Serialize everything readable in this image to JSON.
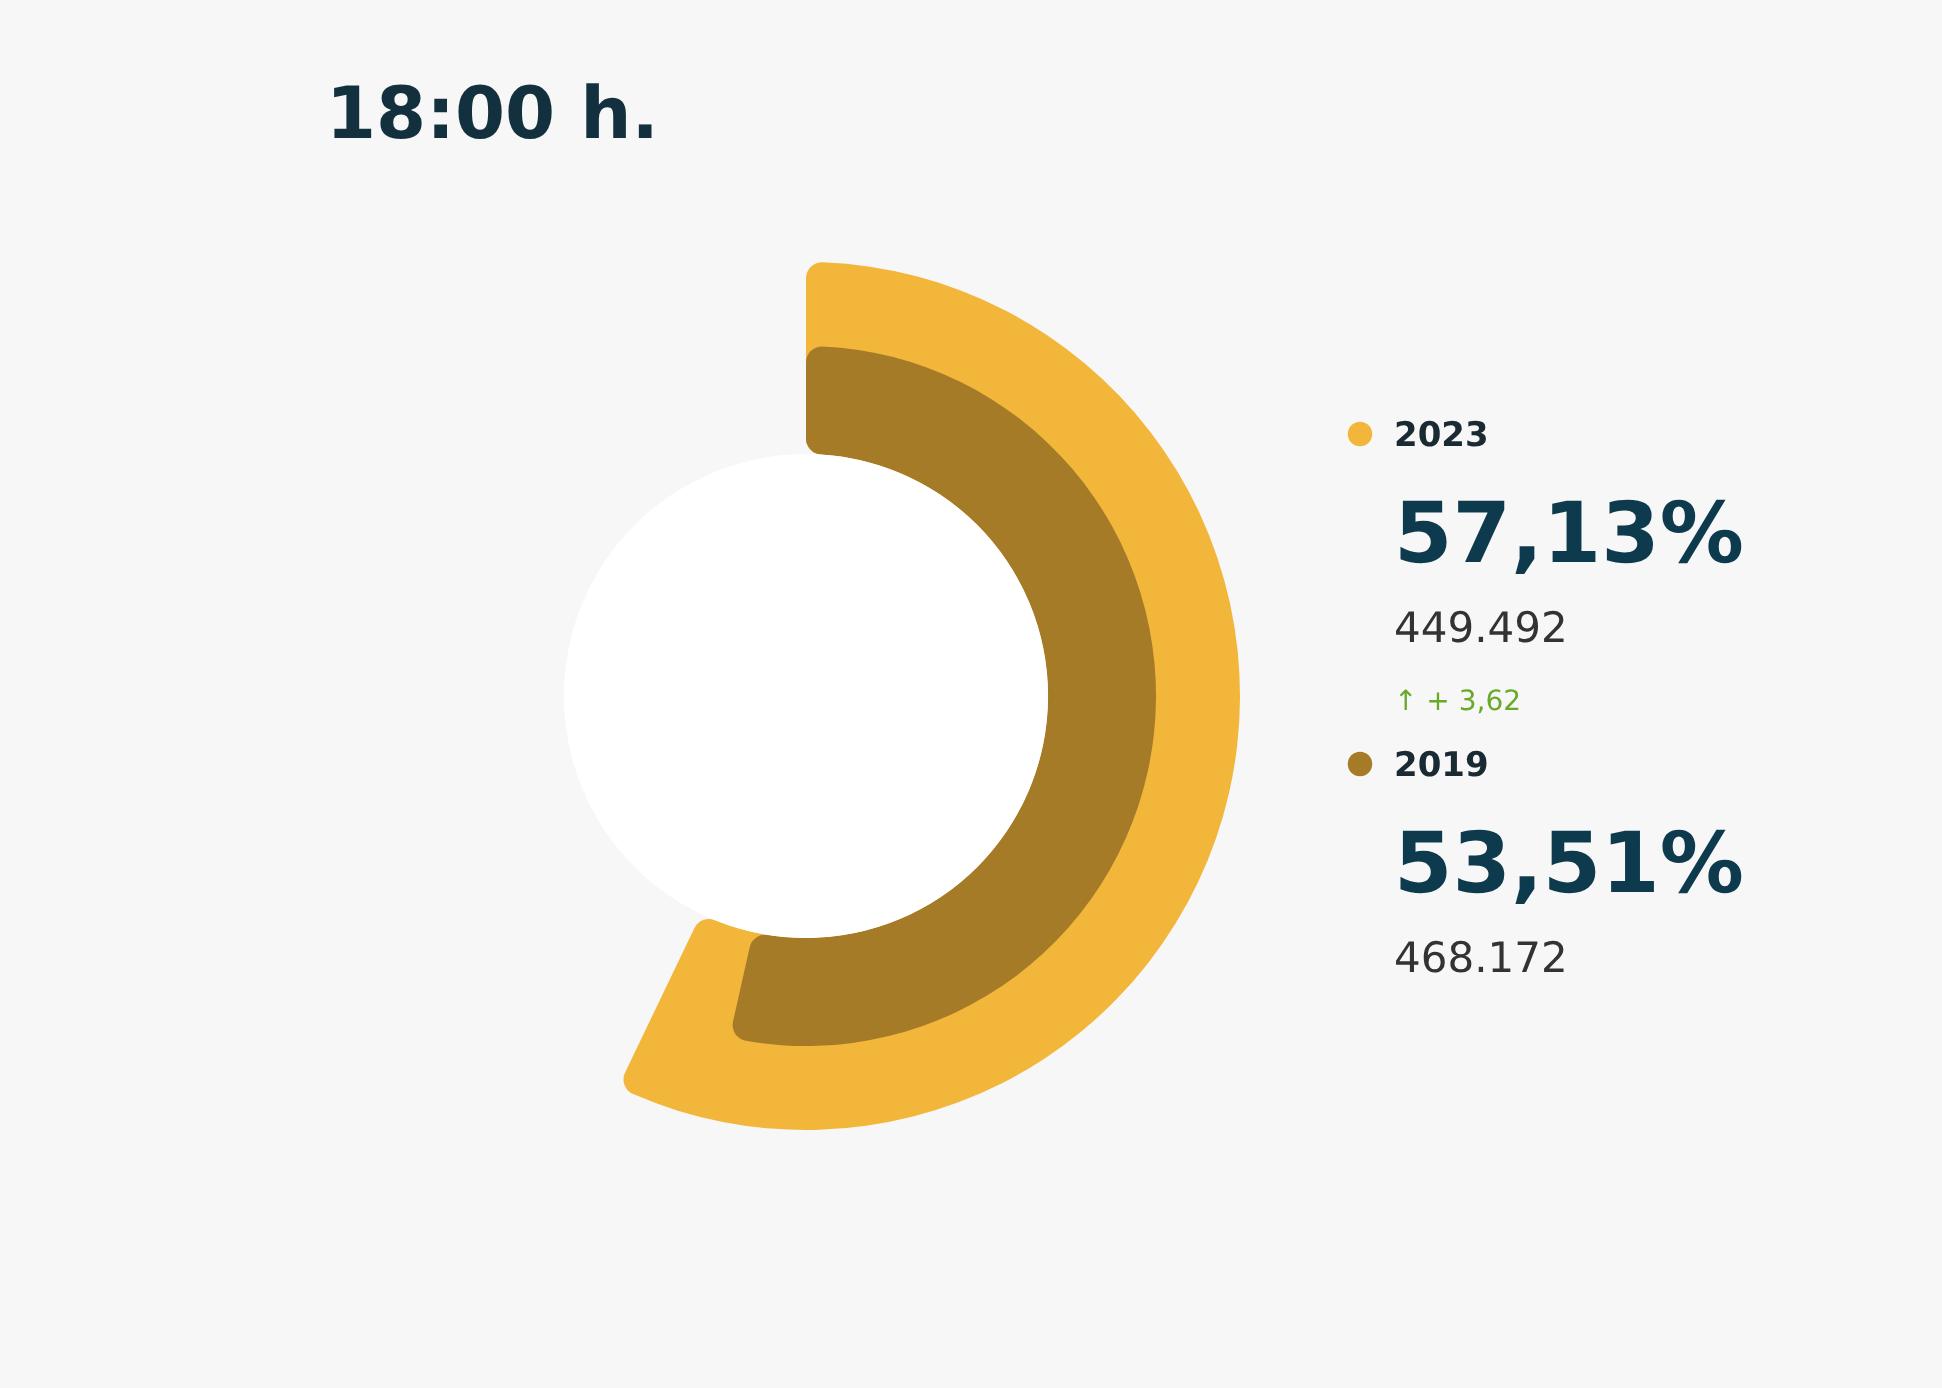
{
  "chart_data": {
    "type": "other",
    "title": "18:00 h.",
    "series": [
      {
        "name": "2019",
        "color": "#a57b28",
        "values": [
          53.51
        ],
        "value_labels": [
          "53,51%"
        ]
      },
      {
        "name": "2023",
        "color": "#f2b63b",
        "values": [
          57.13
        ],
        "value_labels": [
          "57,13%"
        ]
      }
    ],
    "annotations": [
      "449.492",
      "↑ + 3,62",
      "468.172"
    ],
    "legend": "right"
  }
}
